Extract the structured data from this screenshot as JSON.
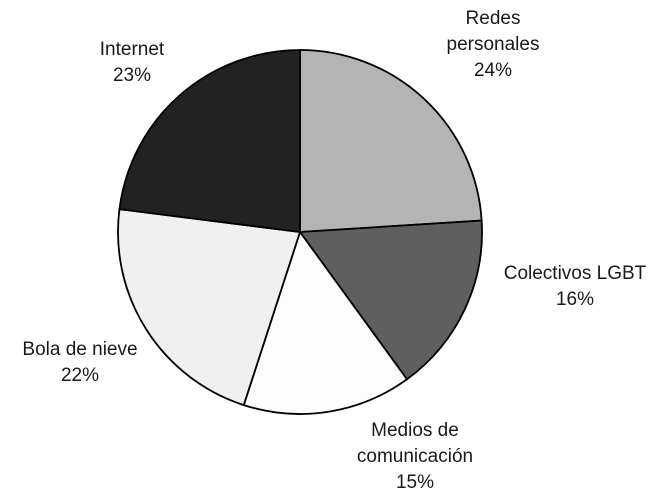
{
  "chart_data": {
    "type": "pie",
    "title": "",
    "slices": [
      {
        "label_lines": [
          "Redes",
          "personales"
        ],
        "value": 24,
        "value_label": "24%",
        "color": "#b4b4b4"
      },
      {
        "label_lines": [
          "Colectivos LGBT"
        ],
        "value": 16,
        "value_label": "16%",
        "color": "#5f5f5f"
      },
      {
        "label_lines": [
          "Medios de",
          "comunicación"
        ],
        "value": 15,
        "value_label": "15%",
        "color": "#fdfdfd"
      },
      {
        "label_lines": [
          "Bola de nieve"
        ],
        "value": 22,
        "value_label": "22%",
        "color": "#f0f0f0"
      },
      {
        "label_lines": [
          "Internet"
        ],
        "value": 23,
        "value_label": "23%",
        "color": "#222222"
      }
    ],
    "start": "12 o'clock",
    "direction": "clockwise",
    "legend": "none"
  }
}
